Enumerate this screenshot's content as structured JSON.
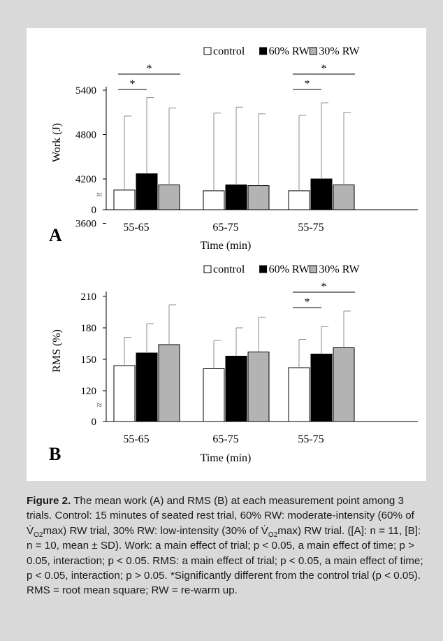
{
  "chart_data": [
    {
      "type": "bar",
      "panel_label": "A",
      "categories": [
        "55-65",
        "65-75",
        "55-75"
      ],
      "series": [
        {
          "name": "control",
          "values": [
            4050,
            4040,
            4040
          ],
          "sd": [
            1000,
            1050,
            1020
          ],
          "color": "#ffffff"
        },
        {
          "name": "60% RW",
          "values": [
            4270,
            4120,
            4200
          ],
          "sd": [
            1030,
            1050,
            1030
          ],
          "color": "#000000"
        },
        {
          "name": "30% RW",
          "values": [
            4120,
            4110,
            4120
          ],
          "sd": [
            1040,
            970,
            980
          ],
          "color": "#b3b3b3"
        }
      ],
      "ylabel": "Work (J)",
      "xlabel": "Time (min)",
      "yticks": [
        "5400",
        "4800",
        "4200",
        "3600",
        "0"
      ],
      "ytick_values": [
        5400,
        4800,
        4200,
        3600
      ],
      "ylim": [
        3300,
        5500
      ],
      "axis_break": "≈",
      "significance": [
        {
          "category": "55-65",
          "from": "control",
          "to": "60% RW",
          "label": "*"
        },
        {
          "category": "55-65",
          "from": "control",
          "to": "30% RW",
          "label": "*"
        },
        {
          "category": "55-75",
          "from": "control",
          "to": "60% RW",
          "label": "*"
        },
        {
          "category": "55-75",
          "from": "control",
          "to": "30% RW",
          "label": "*"
        }
      ],
      "legend_position": "top-right",
      "grid": false
    },
    {
      "type": "bar",
      "panel_label": "B",
      "categories": [
        "55-65",
        "65-75",
        "55-75"
      ],
      "series": [
        {
          "name": "control",
          "values": [
            144,
            141,
            142
          ],
          "sd": [
            27,
            27,
            27
          ],
          "color": "#ffffff"
        },
        {
          "name": "60% RW",
          "values": [
            156,
            153,
            155
          ],
          "sd": [
            28,
            27,
            26
          ],
          "color": "#000000"
        },
        {
          "name": "30% RW",
          "values": [
            164,
            157,
            161
          ],
          "sd": [
            38,
            33,
            35
          ],
          "color": "#b3b3b3"
        }
      ],
      "ylabel": "RMS (%)",
      "xlabel": "Time (min)",
      "yticks": [
        "210",
        "180",
        "150",
        "120",
        "0"
      ],
      "ytick_values": [
        210,
        180,
        150,
        120
      ],
      "ylim": [
        105,
        213
      ],
      "axis_break": "≈",
      "significance": [
        {
          "category": "55-75",
          "from": "control",
          "to": "60% RW",
          "label": "*"
        },
        {
          "category": "55-75",
          "from": "control",
          "to": "30% RW",
          "label": "*"
        }
      ],
      "legend_position": "top-right",
      "grid": false
    }
  ],
  "caption": {
    "label": "Figure 2.",
    "p1": " The mean work (A) and RMS (B) at each measurement point among 3 trials. Control: 15 minutes of seated rest trial, 60% RW: moderate-intensity (60% of V̇",
    "sub1": "O",
    "sub1b": "2",
    "p2": "max) RW trial, 30% RW: low-intensity (30% of V̇",
    "sub2": "O",
    "sub2b": "2",
    "p3": "max) RW trial. ([A]: n = 11, [B]: n = 10, mean ± SD). Work: a main effect of trial; p < 0.05, a main effect of time; p > 0.05, interaction; p < 0.05. RMS: a main effect of trial; p < 0.05, a main effect of time; p < 0.05, interaction; p > 0.05. *Significantly different from the control trial (p < 0.05). RMS = root mean square; RW = re-warm up."
  }
}
